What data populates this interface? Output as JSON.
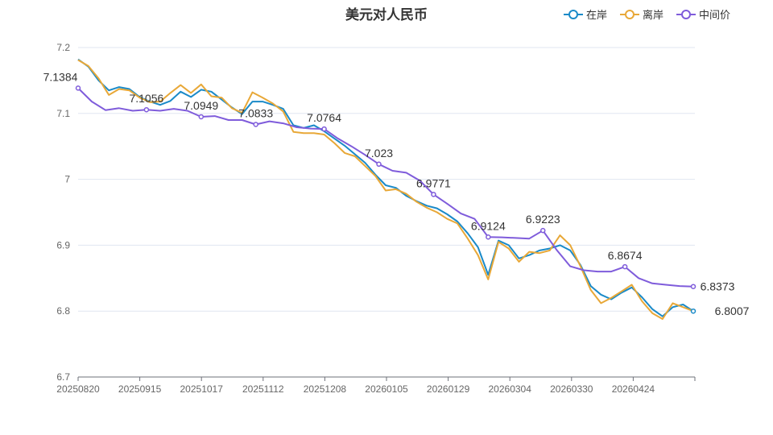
{
  "chart_data": {
    "type": "line",
    "title": "美元对人民币",
    "legend_position": "top-right",
    "grid": true,
    "ylim": [
      6.7,
      7.2
    ],
    "y_ticks": [
      "7.2",
      "7.1",
      "7",
      "6.9",
      "6.8",
      "6.7"
    ],
    "x_ticks": [
      "20250820",
      "20250915",
      "20251017",
      "20251112",
      "20251208",
      "20260105",
      "20260129",
      "20260304",
      "20260330",
      "20260424"
    ],
    "series": [
      {
        "name": "在岸",
        "color": "#1a8ac8",
        "values": [
          7.182,
          7.171,
          7.15,
          7.135,
          7.14,
          7.137,
          7.125,
          7.118,
          7.113,
          7.119,
          7.133,
          7.125,
          7.136,
          7.133,
          7.121,
          7.109,
          7.099,
          7.118,
          7.118,
          7.113,
          7.107,
          7.082,
          7.078,
          7.082,
          7.073,
          7.062,
          7.051,
          7.038,
          7.025,
          7.007,
          6.991,
          6.987,
          6.975,
          6.967,
          6.96,
          6.956,
          6.947,
          6.936,
          6.918,
          6.897,
          6.855,
          6.907,
          6.9,
          6.88,
          6.885,
          6.892,
          6.895,
          6.9,
          6.892,
          6.87,
          6.838,
          6.825,
          6.818,
          6.828,
          6.836,
          6.821,
          6.803,
          6.792,
          6.806,
          6.81,
          6.8
        ]
      },
      {
        "name": "离岸",
        "color": "#e8a838",
        "values": [
          7.181,
          7.172,
          7.153,
          7.128,
          7.137,
          7.135,
          7.124,
          7.117,
          7.118,
          7.131,
          7.143,
          7.131,
          7.144,
          7.126,
          7.124,
          7.108,
          7.101,
          7.132,
          7.124,
          7.115,
          7.103,
          7.072,
          7.07,
          7.07,
          7.068,
          7.055,
          7.04,
          7.035,
          7.02,
          7.005,
          6.983,
          6.985,
          6.978,
          6.966,
          6.957,
          6.95,
          6.94,
          6.933,
          6.91,
          6.885,
          6.848,
          6.905,
          6.895,
          6.875,
          6.89,
          6.888,
          6.892,
          6.915,
          6.9,
          6.868,
          6.832,
          6.812,
          6.82,
          6.83,
          6.84,
          6.815,
          6.797,
          6.788,
          6.812,
          6.806,
          6.8
        ]
      },
      {
        "name": "中间价",
        "color": "#7f5cdb",
        "values": [
          7.1384,
          7.118,
          7.105,
          7.108,
          7.104,
          7.1056,
          7.104,
          7.107,
          7.104,
          7.0949,
          7.096,
          7.09,
          7.09,
          7.0833,
          7.088,
          7.085,
          7.079,
          7.077,
          7.0764,
          7.062,
          7.05,
          7.037,
          7.023,
          7.013,
          7.01,
          6.998,
          6.9771,
          6.963,
          6.948,
          6.94,
          6.9124,
          6.912,
          6.911,
          6.91,
          6.9223,
          6.893,
          6.868,
          6.862,
          6.86,
          6.86,
          6.8674,
          6.85,
          6.842,
          6.84,
          6.838,
          6.8373
        ]
      }
    ],
    "annotations": [
      {
        "series": "中间价",
        "label": "7.1384"
      },
      {
        "series": "中间价",
        "label": "7.1056"
      },
      {
        "series": "中间价",
        "label": "7.0949"
      },
      {
        "series": "中间价",
        "label": "7.0833"
      },
      {
        "series": "中间价",
        "label": "7.0764"
      },
      {
        "series": "中间价",
        "label": "7.023"
      },
      {
        "series": "中间价",
        "label": "6.9771"
      },
      {
        "series": "中间价",
        "label": "6.9124"
      },
      {
        "series": "中间价",
        "label": "6.9223"
      },
      {
        "series": "中间价",
        "label": "6.8674"
      },
      {
        "series": "中间价",
        "label": "6.8373"
      },
      {
        "series": "在岸",
        "label": "6.8007"
      }
    ]
  }
}
